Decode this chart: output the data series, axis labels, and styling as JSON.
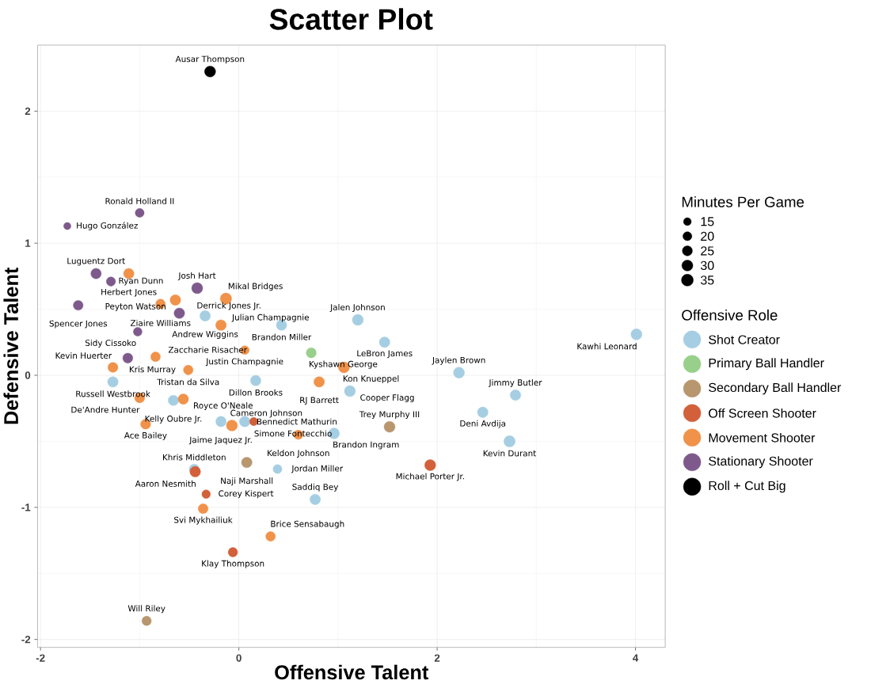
{
  "chart_data": {
    "type": "bubble",
    "title": "Scatter Plot",
    "xlabel": "Offensive Talent",
    "ylabel": "Defensive Talent",
    "legend_title": "Offensive Role",
    "xlim": [
      -2.03,
      4.3
    ],
    "ylim": [
      -2.06,
      2.5
    ],
    "xticks": [
      -2,
      0,
      2,
      4
    ],
    "yticks": [
      -2,
      -1,
      0,
      1,
      2
    ],
    "grid": true,
    "legend": "right",
    "marker": "circle",
    "size_legend": [
      15,
      20,
      25,
      30,
      35
    ],
    "series": [
      {
        "name": "Shot Creator",
        "color": "#a6cee3",
        "x": [
          4.01,
          1.2,
          1.47,
          0.43,
          -0.34,
          2.22,
          2.79,
          2.46,
          2.73,
          1.12,
          0.17,
          0.96,
          -0.18,
          0.06,
          -0.66,
          -1.27,
          -0.45,
          0.39,
          0.77
        ],
        "values": [
          0.31,
          0.42,
          0.25,
          0.38,
          0.45,
          0.02,
          -0.15,
          -0.28,
          -0.5,
          -0.12,
          -0.04,
          -0.44,
          -0.35,
          -0.35,
          -0.19,
          -0.05,
          -0.71,
          -0.71,
          -0.94
        ],
        "sizes": [
          30,
          30,
          28,
          27,
          28,
          30,
          28,
          28,
          32,
          30,
          27,
          29,
          27,
          28,
          27,
          28,
          25,
          20,
          28
        ]
      },
      {
        "name": "Primary Ball Handler",
        "color": "#98d08b",
        "x": [
          0.73
        ],
        "values": [
          0.17
        ],
        "sizes": [
          25
        ]
      },
      {
        "name": "Secondary Ball Handler",
        "color": "#b8966e",
        "x": [
          1.52,
          0.08,
          -0.93
        ],
        "values": [
          -0.39,
          -0.66,
          -1.86
        ],
        "sizes": [
          30,
          28,
          22
        ]
      },
      {
        "name": "Off Screen Shooter",
        "color": "#d2603a",
        "x": [
          1.93,
          -0.44,
          -0.33,
          -0.06,
          0.15
        ],
        "values": [
          -0.68,
          -0.73,
          -0.9,
          -1.34,
          -0.35
        ],
        "sizes": [
          30,
          28,
          18,
          22,
          17
        ]
      },
      {
        "name": "Movement Shooter",
        "color": "#f0924a",
        "x": [
          -1.11,
          -0.64,
          -0.79,
          -0.13,
          -0.18,
          0.06,
          -0.84,
          -0.51,
          -1.27,
          1.06,
          0.81,
          -1.0,
          -0.56,
          -0.94,
          -0.07,
          0.6,
          -0.36,
          0.32
        ],
        "values": [
          0.77,
          0.57,
          0.54,
          0.58,
          0.38,
          0.19,
          0.14,
          0.04,
          0.06,
          0.06,
          -0.05,
          -0.17,
          -0.18,
          -0.37,
          -0.38,
          -0.45,
          -1.01,
          -1.22
        ],
        "sizes": [
          27,
          28,
          23,
          32,
          28,
          19,
          23,
          23,
          25,
          30,
          28,
          25,
          27,
          25,
          30,
          22,
          24,
          23
        ]
      },
      {
        "name": "Stationary Shooter",
        "color": "#7e5a8c",
        "x": [
          -1.0,
          -1.73,
          -1.44,
          -1.29,
          -1.62,
          -0.42,
          -0.6,
          -1.02,
          -1.12
        ],
        "values": [
          1.23,
          1.13,
          0.77,
          0.71,
          0.53,
          0.66,
          0.47,
          0.33,
          0.13
        ],
        "sizes": [
          20,
          13,
          27,
          21,
          24,
          30,
          28,
          19,
          25
        ]
      },
      {
        "name": "Roll + Cut Big",
        "color": "#000000",
        "x": [
          -0.29
        ],
        "values": [
          2.3
        ],
        "sizes": [
          30
        ]
      }
    ],
    "annotations": [
      "Minutes Per Game",
      {
        "text": "Ausar Thompson",
        "x": -0.29,
        "y": 2.3
      },
      {
        "text": "Kawhi Leonard",
        "x": 4.01,
        "y": 0.31
      },
      {
        "text": "Ronald Holland II",
        "x": -1.0,
        "y": 1.23
      },
      {
        "text": "Hugo González",
        "x": -1.73,
        "y": 1.13
      },
      {
        "text": "Luguentz Dort",
        "x": -1.44,
        "y": 0.77
      },
      {
        "text": "Herbert Jones",
        "x": -1.11,
        "y": 0.77
      },
      {
        "text": "Ryan Dunn",
        "x": -1.29,
        "y": 0.71
      },
      {
        "text": "Josh Hart",
        "x": -0.42,
        "y": 0.66
      },
      {
        "text": "Mikal Bridges",
        "x": -0.13,
        "y": 0.58
      },
      {
        "text": "Peyton Watson",
        "x": -0.64,
        "y": 0.57
      },
      {
        "text": "Ziaire Williams",
        "x": -0.79,
        "y": 0.54
      },
      {
        "text": "Spencer Jones",
        "x": -1.62,
        "y": 0.53
      },
      {
        "text": "Derrick Jones Jr.",
        "x": -0.6,
        "y": 0.47
      },
      {
        "text": "Andrew Wiggins",
        "x": -0.34,
        "y": 0.45
      },
      {
        "text": "Jalen Johnson",
        "x": 1.2,
        "y": 0.42
      },
      {
        "text": "Brandon Miller",
        "x": 0.43,
        "y": 0.38
      },
      {
        "text": "Julian Champagnie",
        "x": -0.18,
        "y": 0.38
      },
      {
        "text": "Sidy Cissoko",
        "x": -1.02,
        "y": 0.33
      },
      {
        "text": "LeBron James",
        "x": 1.47,
        "y": 0.25
      },
      {
        "text": "Justin Champagnie",
        "x": 0.06,
        "y": 0.19
      },
      {
        "text": "Kyshawn George",
        "x": 0.73,
        "y": 0.17
      },
      {
        "text": "Zaccharie Risacher",
        "x": -0.84,
        "y": 0.14
      },
      {
        "text": "Kris Murray",
        "x": -1.12,
        "y": 0.13
      },
      {
        "text": "Kon Knueppel",
        "x": 1.06,
        "y": 0.06
      },
      {
        "text": "Kevin Huerter",
        "x": -1.27,
        "y": 0.06
      },
      {
        "text": "Tristan da Silva",
        "x": -0.51,
        "y": 0.04
      },
      {
        "text": "Jaylen Brown",
        "x": 2.22,
        "y": 0.02
      },
      {
        "text": "Dillon Brooks",
        "x": 0.17,
        "y": -0.04
      },
      {
        "text": "RJ Barrett",
        "x": 0.81,
        "y": -0.05
      },
      {
        "text": "Russell Westbrook",
        "x": -1.27,
        "y": -0.05
      },
      {
        "text": "Cooper Flagg",
        "x": 1.12,
        "y": -0.12
      },
      {
        "text": "Jimmy Butler",
        "x": 2.79,
        "y": -0.15
      },
      {
        "text": "De'Andre Hunter",
        "x": -1.0,
        "y": -0.17
      },
      {
        "text": "Royce O'Neale",
        "x": -0.56,
        "y": -0.18
      },
      {
        "text": "Kelly Oubre Jr.",
        "x": -0.66,
        "y": -0.19
      },
      {
        "text": "Deni Avdija",
        "x": 2.46,
        "y": -0.28
      },
      {
        "text": "Jaime Jaquez Jr.",
        "x": -0.18,
        "y": -0.35
      },
      {
        "text": "Bennedict Mathurin",
        "x": 0.06,
        "y": -0.35
      },
      {
        "text": "Simone Fontecchio",
        "x": 0.15,
        "y": -0.35
      },
      {
        "text": "Ace Bailey",
        "x": -0.94,
        "y": -0.37
      },
      {
        "text": "Cameron Johnson",
        "x": -0.07,
        "y": -0.38
      },
      {
        "text": "Trey Murphy III",
        "x": 1.52,
        "y": -0.39
      },
      {
        "text": "Brandon Ingram",
        "x": 0.96,
        "y": -0.44
      },
      {
        "text": "Keldon Johnson",
        "x": 0.6,
        "y": -0.45
      },
      {
        "text": "Kevin Durant",
        "x": 2.73,
        "y": -0.5
      },
      {
        "text": "Naji Marshall",
        "x": 0.08,
        "y": -0.66
      },
      {
        "text": "Michael Porter Jr.",
        "x": 1.93,
        "y": -0.68
      },
      {
        "text": "Khris Middleton",
        "x": -0.45,
        "y": -0.71
      },
      {
        "text": "Jordan Miller",
        "x": 0.39,
        "y": -0.71
      },
      {
        "text": "Aaron Nesmith",
        "x": -0.44,
        "y": -0.73
      },
      {
        "text": "Corey Kispert",
        "x": -0.33,
        "y": -0.9
      },
      {
        "text": "Saddiq Bey",
        "x": 0.77,
        "y": -0.94
      },
      {
        "text": "Svi Mykhailiuk",
        "x": -0.36,
        "y": -1.01
      },
      {
        "text": "Brice Sensabaugh",
        "x": 0.32,
        "y": -1.22
      },
      {
        "text": "Klay Thompson",
        "x": -0.06,
        "y": -1.34
      },
      {
        "text": "Will Riley",
        "x": -0.93,
        "y": -1.86
      }
    ]
  }
}
